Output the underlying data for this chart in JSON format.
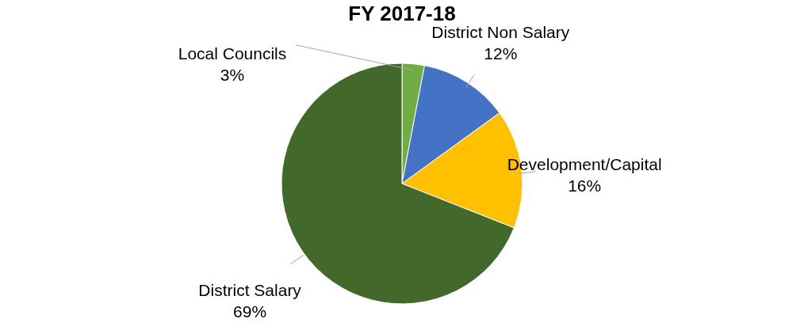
{
  "chart_data": {
    "type": "pie",
    "title": "FY 2017-18",
    "categories": [
      "Local Councils",
      "District Non Salary",
      "Development/Capital",
      "District Salary"
    ],
    "values": [
      3,
      12,
      16,
      69
    ],
    "value_labels": [
      "3%",
      "12%",
      "16%",
      "69%"
    ],
    "colors": [
      "#70ad47",
      "#4472c4",
      "#ffc000",
      "#43682b"
    ]
  }
}
